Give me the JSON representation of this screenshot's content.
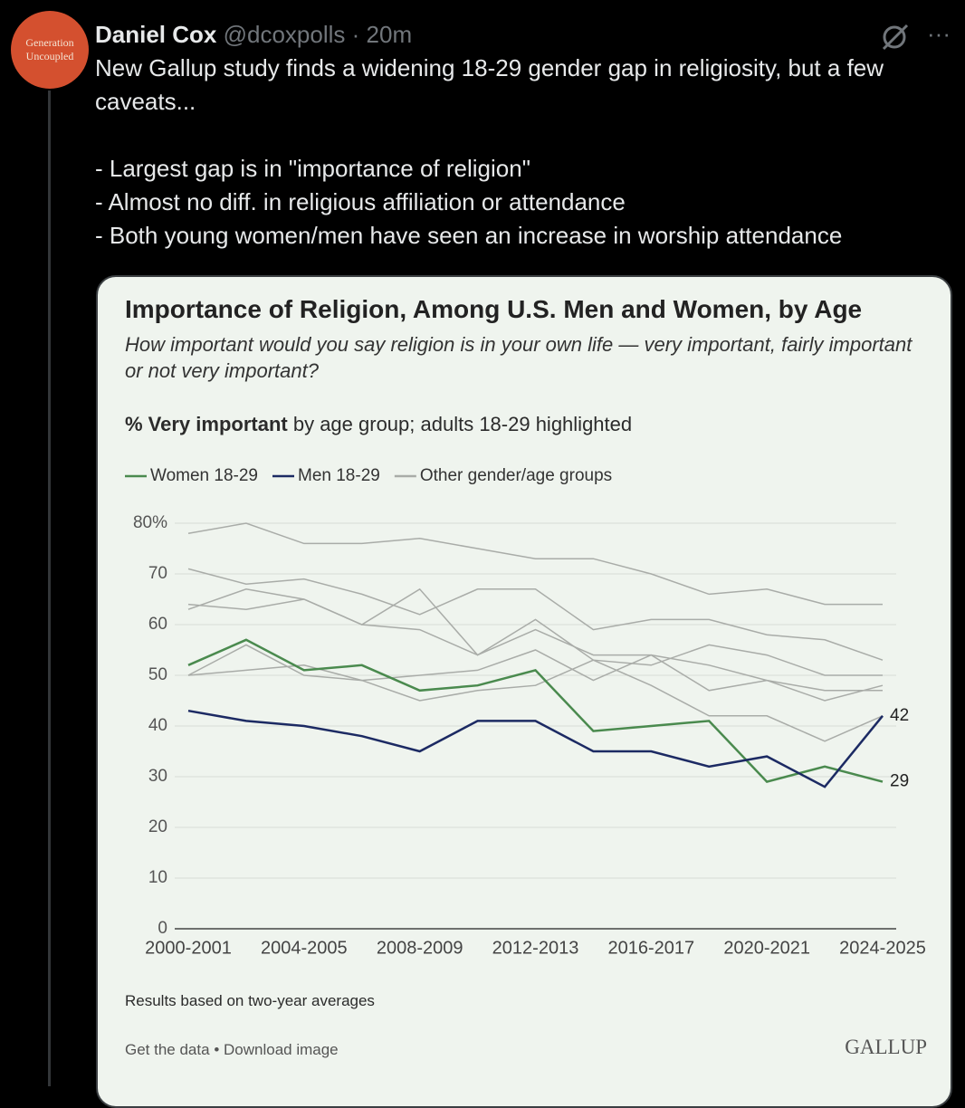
{
  "tweet": {
    "avatar_lines": [
      "Generation",
      "Uncoupled"
    ],
    "author": "Daniel Cox",
    "handle": "@dcoxpolls",
    "separator": "·",
    "time": "20m",
    "more": "···",
    "paragraph": "New Gallup study finds a widening 18-29 gender gap in religiosity, but a few caveats...",
    "bullets": [
      "- Largest gap is in \"importance of religion\"",
      "- Almost no diff. in religious affiliation or attendance",
      "- Both young women/men have seen an increase in worship attendance"
    ]
  },
  "chart_data": {
    "type": "line",
    "title": "Importance of Religion, Among U.S. Men and Women, by Age",
    "subtitle": "How important would you say religion is in your own life — very important, fairly important or not very important?",
    "subhead_bold": "% Very important",
    "subhead_rest": "by age group; adults 18-29 highlighted",
    "categories": [
      "2000-2001",
      null,
      "2004-2005",
      null,
      "2008-2009",
      null,
      "2012-2013",
      null,
      "2016-2017",
      null,
      "2020-2021",
      null,
      "2024-2025"
    ],
    "series": [
      {
        "name": "Women 18-29",
        "color": "#4a8a4e",
        "values": [
          52,
          57,
          51,
          52,
          47,
          48,
          51,
          39,
          40,
          41,
          29,
          32,
          29
        ]
      },
      {
        "name": "Men 18-29",
        "color": "#1c2a63",
        "values": [
          43,
          41,
          40,
          38,
          35,
          41,
          41,
          35,
          35,
          32,
          34,
          28,
          42
        ]
      }
    ],
    "other_groups": {
      "name": "Other gender/age groups",
      "color": "#a9aca8",
      "lines": [
        [
          78,
          80,
          76,
          76,
          77,
          75,
          73,
          73,
          70,
          66,
          67,
          64,
          64
        ],
        [
          71,
          68,
          69,
          66,
          62,
          67,
          67,
          59,
          61,
          61,
          58,
          57,
          53
        ],
        [
          63,
          67,
          65,
          60,
          67,
          54,
          61,
          53,
          52,
          56,
          54,
          50,
          50
        ],
        [
          64,
          63,
          65,
          60,
          59,
          54,
          59,
          54,
          54,
          52,
          49,
          47,
          47
        ],
        [
          50,
          56,
          50,
          49,
          50,
          51,
          55,
          49,
          54,
          47,
          49,
          45,
          48
        ],
        [
          50,
          51,
          52,
          49,
          45,
          47,
          48,
          53,
          48,
          42,
          42,
          37,
          42
        ]
      ]
    },
    "ylim": [
      0,
      80
    ],
    "yticks": [
      0,
      10,
      20,
      30,
      40,
      50,
      60,
      70,
      {
        "value": 80,
        "label": "80%"
      }
    ],
    "grid": true,
    "note": "Results based on two-year averages",
    "footer_links": [
      "Get the data",
      "•",
      "Download image"
    ],
    "brand": "GALLUP"
  }
}
